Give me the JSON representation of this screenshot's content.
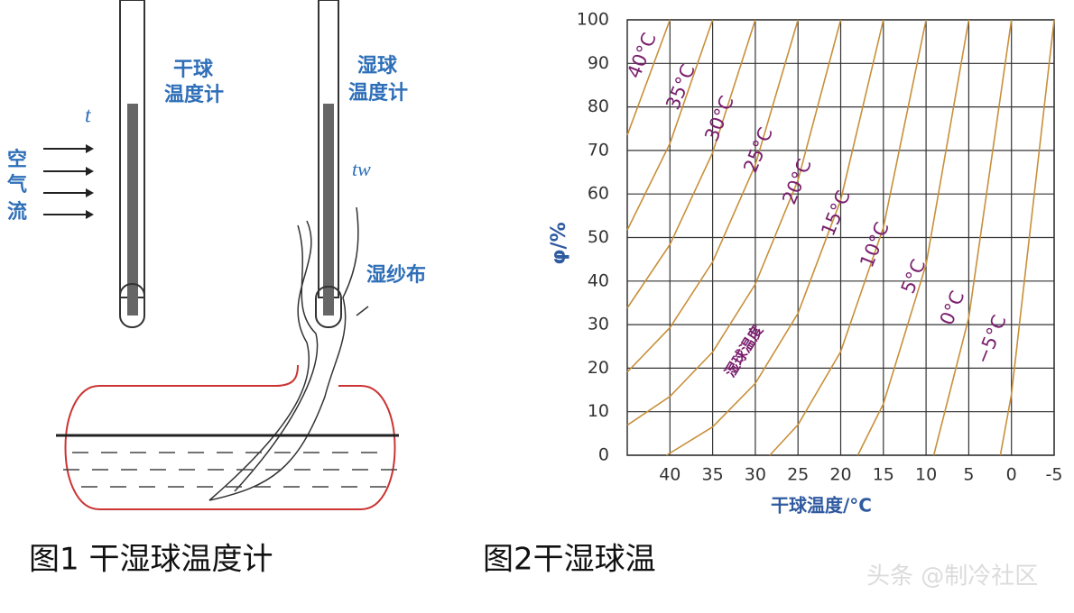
{
  "figure1": {
    "dry_label_1": "干球",
    "dry_label_2": "温度计",
    "wet_label_1": "湿球",
    "wet_label_2": "温度计",
    "t_label": "t",
    "tw_label": "tw",
    "air_1": "空",
    "air_2": "气",
    "air_3": "流",
    "wick_label": "湿纱布",
    "caption": "图1  干湿球温度计"
  },
  "caption2": "图2干湿球温",
  "watermark": "头条 @制冷社区",
  "chart_data": {
    "type": "line",
    "xlabel": "干球温度/°C",
    "ylabel": "φ/%",
    "curve_label": "湿球温度",
    "xlim": [
      45,
      -5
    ],
    "ylim": [
      0,
      100
    ],
    "xticks": [
      40,
      35,
      30,
      25,
      20,
      15,
      10,
      5,
      0,
      -5
    ],
    "yticks": [
      0,
      10,
      20,
      30,
      40,
      50,
      60,
      70,
      80,
      90,
      100
    ],
    "grid": true,
    "color": "#c8903a",
    "series": [
      {
        "name": "40°C",
        "x": [
          40,
          45
        ],
        "values": [
          100,
          73.5
        ]
      },
      {
        "name": "35°C",
        "x": [
          35,
          40,
          45
        ],
        "values": [
          100,
          71.6,
          51.7
        ]
      },
      {
        "name": "30°C",
        "x": [
          30,
          35,
          40,
          45
        ],
        "values": [
          100,
          69.5,
          48.4,
          33.8
        ]
      },
      {
        "name": "25°C",
        "x": [
          25,
          30,
          35,
          40,
          45
        ],
        "values": [
          100,
          66.7,
          44.4,
          29.3,
          19.1
        ]
      },
      {
        "name": "20°C",
        "x": [
          20,
          25,
          30,
          35,
          40,
          45
        ],
        "values": [
          100,
          63.2,
          39.3,
          23.7,
          13.5,
          6.9
        ]
      },
      {
        "name": "15°C",
        "x": [
          15,
          20,
          25,
          30,
          35,
          40.4
        ],
        "values": [
          100,
          58.6,
          32.6,
          16.5,
          6.5,
          0
        ]
      },
      {
        "name": "10°C",
        "x": [
          10,
          15,
          20,
          25,
          28.3
        ],
        "values": [
          100,
          52.3,
          23.8,
          7,
          0
        ]
      },
      {
        "name": "5°C",
        "x": [
          5,
          10,
          15,
          18
        ],
        "values": [
          100,
          43.8,
          11.8,
          0
        ]
      },
      {
        "name": "0°C",
        "x": [
          0,
          5,
          9.1
        ],
        "values": [
          100,
          31.6,
          0
        ]
      },
      {
        "name": "−5°C",
        "x": [
          -5,
          0,
          1.3
        ],
        "values": [
          100,
          14,
          0
        ]
      }
    ]
  }
}
